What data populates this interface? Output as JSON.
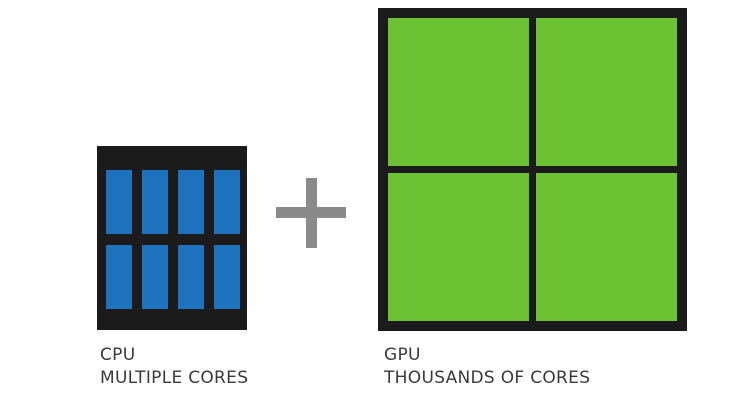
{
  "colors": {
    "chip_body": "#1b1b1b",
    "cpu_core": "#1e73be",
    "gpu_core": "#6cc232",
    "plus_sign": "#8a8a8a",
    "label_text": "#3a3a3a"
  },
  "cpu": {
    "title": "CPU",
    "subtitle": "MULTIPLE CORES",
    "core_rows": 2,
    "core_cols": 4
  },
  "operator": {
    "symbol": "plus-icon"
  },
  "gpu": {
    "title": "GPU",
    "subtitle": "THOUSANDS OF CORES",
    "block_rows": 2,
    "block_cols": 2
  }
}
